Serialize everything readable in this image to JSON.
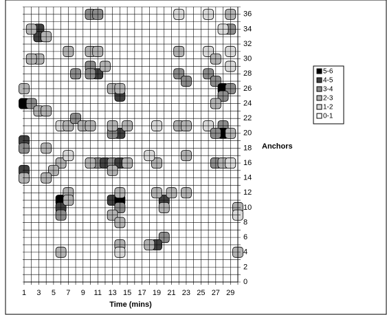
{
  "chart_data": {
    "type": "contour",
    "x_label": "Time (mins)",
    "y_label": "Anchors",
    "xlim": [
      1,
      30
    ],
    "ylim": [
      0,
      37
    ],
    "xticks": [
      1,
      3,
      5,
      7,
      9,
      11,
      13,
      15,
      17,
      19,
      21,
      23,
      25,
      27,
      29
    ],
    "yticks": [
      0,
      2,
      4,
      6,
      8,
      10,
      12,
      14,
      16,
      18,
      20,
      22,
      24,
      26,
      28,
      30,
      32,
      34,
      36
    ],
    "xgrid": [
      1,
      2,
      3,
      4,
      5,
      6,
      7,
      8,
      9,
      10,
      11,
      12,
      13,
      14,
      15,
      16,
      17,
      18,
      19,
      20,
      21,
      22,
      23,
      24,
      25,
      26,
      27,
      28,
      29,
      30
    ],
    "ygrid": [
      0,
      1,
      2,
      3,
      4,
      5,
      6,
      7,
      8,
      9,
      10,
      11,
      12,
      13,
      14,
      15,
      16,
      17,
      18,
      19,
      20,
      21,
      22,
      23,
      24,
      25,
      26,
      27,
      28,
      29,
      30,
      31,
      32,
      33,
      34,
      35,
      36,
      37
    ],
    "levels": [
      0,
      1,
      2,
      3,
      4,
      5,
      6
    ],
    "bands": [
      {
        "name": "0-1",
        "color": "#ffffff"
      },
      {
        "name": "1-2",
        "color": "#d9d9d9"
      },
      {
        "name": "2-3",
        "color": "#b3b3b3"
      },
      {
        "name": "3-4",
        "color": "#8c8c8c"
      },
      {
        "name": "4-5",
        "color": "#404040"
      },
      {
        "name": "5-6",
        "color": "#000000"
      }
    ],
    "points": [
      [
        10,
        36,
        3
      ],
      [
        11,
        36,
        3
      ],
      [
        3,
        34,
        4
      ],
      [
        3,
        33,
        4
      ],
      [
        4,
        33,
        2
      ],
      [
        2,
        34,
        2
      ],
      [
        22,
        36,
        1
      ],
      [
        26,
        36,
        1
      ],
      [
        29,
        36,
        2
      ],
      [
        29,
        34,
        3
      ],
      [
        28,
        34,
        1
      ],
      [
        7,
        31,
        2
      ],
      [
        10,
        31,
        2
      ],
      [
        11,
        31,
        2
      ],
      [
        22,
        31,
        2
      ],
      [
        26,
        31,
        1
      ],
      [
        27,
        30,
        2
      ],
      [
        29,
        31,
        1
      ],
      [
        3,
        30,
        2
      ],
      [
        2,
        30,
        2
      ],
      [
        29,
        29,
        1
      ],
      [
        8,
        28,
        3
      ],
      [
        10,
        29,
        3
      ],
      [
        11,
        28,
        4
      ],
      [
        10,
        28,
        3
      ],
      [
        12,
        29,
        2
      ],
      [
        22,
        28,
        3
      ],
      [
        23,
        27,
        3
      ],
      [
        26,
        28,
        3
      ],
      [
        27,
        27,
        3
      ],
      [
        28,
        26,
        5
      ],
      [
        29,
        26,
        3
      ],
      [
        28,
        25,
        3
      ],
      [
        27,
        24,
        2
      ],
      [
        13,
        26,
        2
      ],
      [
        14,
        25,
        4
      ],
      [
        14,
        26,
        2
      ],
      [
        1,
        26,
        2
      ],
      [
        1,
        24,
        5
      ],
      [
        2,
        24,
        3
      ],
      [
        3,
        23,
        2
      ],
      [
        4,
        23,
        2
      ],
      [
        6,
        21,
        1
      ],
      [
        7,
        21,
        2
      ],
      [
        8,
        22,
        3
      ],
      [
        9,
        21,
        2
      ],
      [
        10,
        21,
        2
      ],
      [
        14,
        20,
        4
      ],
      [
        13,
        20,
        3
      ],
      [
        15,
        21,
        2
      ],
      [
        13,
        21,
        2
      ],
      [
        19,
        21,
        1
      ],
      [
        22,
        21,
        2
      ],
      [
        23,
        21,
        2
      ],
      [
        26,
        21,
        1
      ],
      [
        28,
        21,
        3
      ],
      [
        28,
        20,
        5
      ],
      [
        27,
        20,
        3
      ],
      [
        29,
        20,
        2
      ],
      [
        1,
        19,
        4
      ],
      [
        1,
        18,
        3
      ],
      [
        4,
        18,
        2
      ],
      [
        6,
        16,
        2
      ],
      [
        7,
        17,
        1
      ],
      [
        5,
        15,
        2
      ],
      [
        4,
        14,
        2
      ],
      [
        11,
        16,
        3
      ],
      [
        12,
        16,
        4
      ],
      [
        13,
        16,
        3
      ],
      [
        14,
        16,
        4
      ],
      [
        13,
        15,
        2
      ],
      [
        10,
        16,
        2
      ],
      [
        15,
        16,
        2
      ],
      [
        19,
        16,
        2
      ],
      [
        18,
        17,
        1
      ],
      [
        23,
        17,
        2
      ],
      [
        27,
        16,
        3
      ],
      [
        28,
        16,
        2
      ],
      [
        29,
        16,
        1
      ],
      [
        1,
        15,
        4
      ],
      [
        1,
        14,
        2
      ],
      [
        6,
        11,
        5
      ],
      [
        6,
        10,
        4
      ],
      [
        6,
        9,
        3
      ],
      [
        7,
        12,
        2
      ],
      [
        7,
        11,
        2
      ],
      [
        13,
        11,
        4
      ],
      [
        14,
        11,
        5
      ],
      [
        14,
        10,
        3
      ],
      [
        14,
        12,
        2
      ],
      [
        13,
        9,
        2
      ],
      [
        14,
        8,
        2
      ],
      [
        20,
        11,
        4
      ],
      [
        19,
        12,
        2
      ],
      [
        21,
        12,
        2
      ],
      [
        20,
        10,
        2
      ],
      [
        23,
        12,
        2
      ],
      [
        30,
        10,
        2
      ],
      [
        30,
        9,
        1
      ],
      [
        20,
        6,
        3
      ],
      [
        19,
        5,
        4
      ],
      [
        18,
        5,
        2
      ],
      [
        14,
        5,
        2
      ],
      [
        14,
        4,
        1
      ],
      [
        6,
        4,
        2
      ],
      [
        30,
        4,
        2
      ]
    ]
  }
}
